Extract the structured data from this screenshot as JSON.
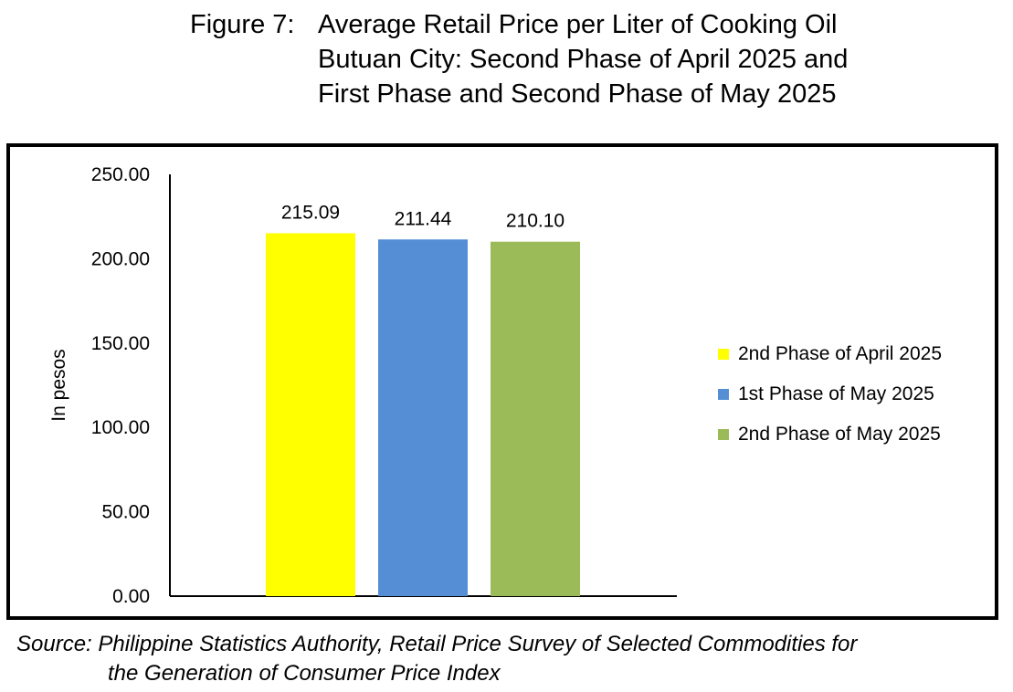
{
  "figure": {
    "title_prefix": "Figure 7:",
    "title_lines": [
      "Average Retail Price per Liter of Cooking Oil",
      "Butuan City: Second Phase of April 2025 and",
      "First Phase and Second Phase of May 2025"
    ],
    "source_lines": [
      "Source: Philippine Statistics Authority, Retail Price Survey of Selected Commodities for",
      "the Generation of Consumer Price Index"
    ]
  },
  "chart_data": {
    "type": "bar",
    "title": "Figure 7: Average Retail Price per Liter of Cooking Oil Butuan City: Second Phase of April 2025 and First Phase and Second Phase of May 2025",
    "xlabel": "",
    "ylabel": "In pesos",
    "ylim": [
      0,
      250
    ],
    "yticks": [
      "0.00",
      "50.00",
      "100.00",
      "150.00",
      "200.00",
      "250.00"
    ],
    "ytick_values": [
      0,
      50,
      100,
      150,
      200,
      250
    ],
    "grid": false,
    "legend_position": "right",
    "series": [
      {
        "name": "2nd Phase of April 2025",
        "value": 215.09,
        "label": "215.09",
        "color": "#ffff00"
      },
      {
        "name": "1st Phase of May 2025",
        "value": 211.44,
        "label": "211.44",
        "color": "#558ed5"
      },
      {
        "name": "2nd Phase of May 2025",
        "value": 210.1,
        "label": "210.10",
        "color": "#9bbb59"
      }
    ]
  }
}
